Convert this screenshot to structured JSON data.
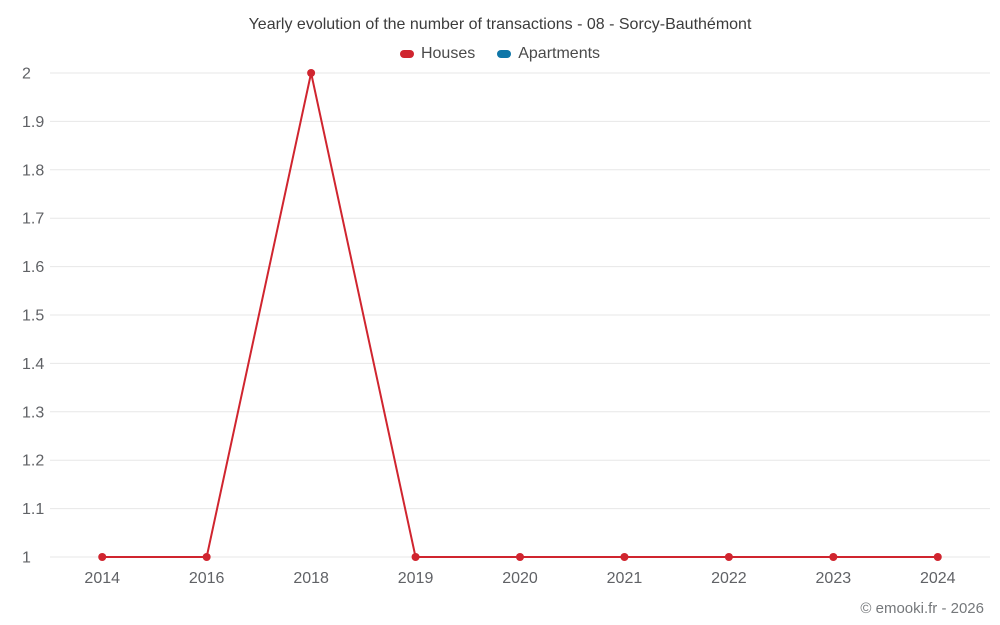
{
  "chart": {
    "title": "Yearly evolution of the number of transactions - 08 - Sorcy-Bauthémont",
    "footer": "© emooki.fr - 2026"
  },
  "legend": {
    "items": [
      {
        "label": "Houses",
        "color": "#d0252f"
      },
      {
        "label": "Apartments",
        "color": "#0e76a8"
      }
    ]
  },
  "chart_data": {
    "type": "line",
    "title": "Yearly evolution of the number of transactions - 08 - Sorcy-Bauthémont",
    "categories": [
      "2014",
      "2016",
      "2018",
      "2019",
      "2020",
      "2021",
      "2022",
      "2023",
      "2024"
    ],
    "series": [
      {
        "name": "Houses",
        "color": "#d0252f",
        "values": [
          1,
          1,
          2,
          1,
          1,
          1,
          1,
          1,
          1
        ]
      },
      {
        "name": "Apartments",
        "color": "#0e76a8",
        "values": []
      }
    ],
    "xlabel": "",
    "ylabel": "",
    "ylim": [
      1,
      2
    ],
    "ytick_step": 0.1,
    "ytick_labels": [
      "1",
      "1.1",
      "1.2",
      "1.3",
      "1.4",
      "1.5",
      "1.6",
      "1.7",
      "1.8",
      "1.9",
      "2"
    ],
    "grid": true,
    "gridline_color": "#e7e7e7",
    "legend_position": "top"
  }
}
